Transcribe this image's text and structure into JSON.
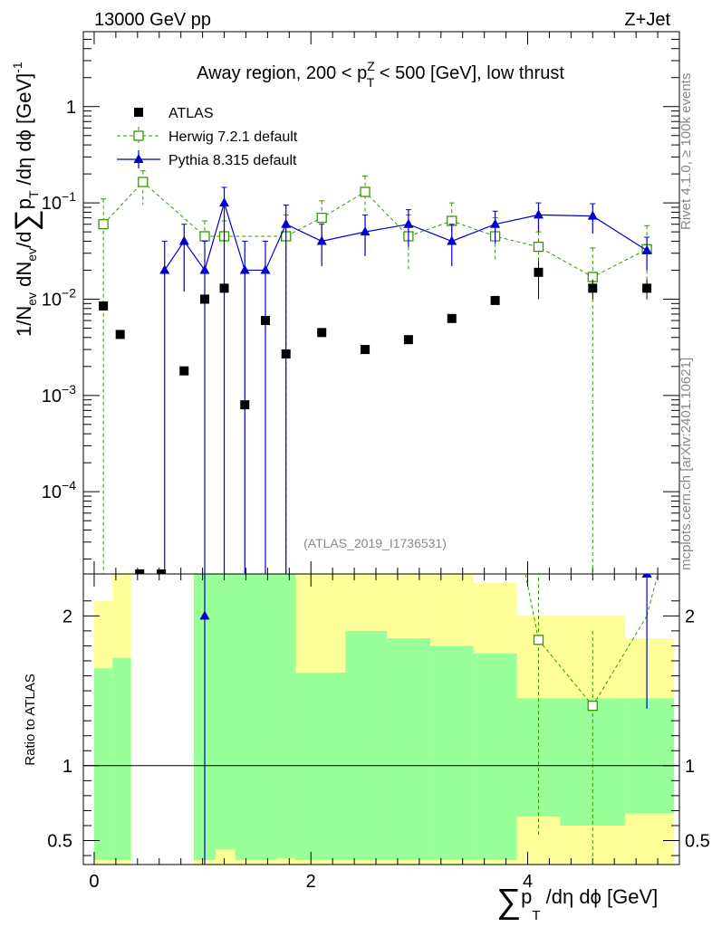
{
  "header": {
    "left": "13000 GeV pp",
    "right": "Z+Jet"
  },
  "side_text": {
    "rivet": "Rivet 4.1.0, ≥ 100k events",
    "mcplots": "mcplots.cern.ch [arXiv:2401.10621]"
  },
  "chart_data": {
    "type": "scatter",
    "title": "Away region, 200 < p_T^Z < 500 [GeV], low thrust",
    "title_parts": {
      "pre": "Away region, 200 < p",
      "sup": "Z",
      "sub": "T",
      "post": " < 500 [GeV], low thrust"
    },
    "analysis_id": "(ATLAS_2019_I1736531)",
    "xlabel": "∑ p_T /dη dϕ [GeV]",
    "xlabel_parts": {
      "sum": "∑",
      "p": "p",
      "sub": "T",
      "rest": " /dη dϕ [GeV]"
    },
    "ylabel": "1/N_ev dN_ev/d∑ p_T /dη dϕ [GeV]^-1",
    "ylabel_parts": {
      "a": "1/N",
      "ev1": "ev",
      "b": " dN",
      "ev2": "ev",
      "c": "/d",
      "sum": "∑",
      "p": "p",
      "sub": "T",
      "d": " /dη dϕ  [GeV]",
      "sup": "-1"
    },
    "ratio_ylabel": "Ratio to ATLAS",
    "xlim": [
      -0.1,
      5.4
    ],
    "ylim": [
      1.4e-05,
      6
    ],
    "ratio_ylim": [
      0.34,
      2.28
    ],
    "x_ticks": [
      {
        "v": 0,
        "label": "0"
      },
      {
        "v": 2,
        "label": "2"
      },
      {
        "v": 4,
        "label": "4"
      }
    ],
    "y_ticks": [
      {
        "v": 1,
        "base": "1",
        "exp": ""
      },
      {
        "v": 0.1,
        "base": "10",
        "exp": "−1"
      },
      {
        "v": 0.01,
        "base": "10",
        "exp": "−2"
      },
      {
        "v": 0.001,
        "base": "10",
        "exp": "−3"
      },
      {
        "v": 0.0001,
        "base": "10",
        "exp": "−4"
      }
    ],
    "ratio_ticks": [
      {
        "v": 0.5,
        "label": "0.5"
      },
      {
        "v": 1,
        "label": "1"
      },
      {
        "v": 2,
        "label": "2"
      }
    ],
    "legend": [
      {
        "name": "ATLAS",
        "marker": "square",
        "color": "#000000"
      },
      {
        "name": "Herwig 7.2.1 default",
        "marker": "open-square",
        "color": "#339900",
        "dashed": true
      },
      {
        "name": "Pythia 8.315 default",
        "marker": "triangle",
        "color": "#0000cc"
      }
    ],
    "atlas": {
      "x": [
        0.085,
        0.24,
        0.42,
        0.62,
        0.83,
        1.02,
        1.2,
        1.39,
        1.58,
        1.77,
        2.1,
        2.5,
        2.9,
        3.3,
        3.7,
        4.1,
        4.6,
        5.1
      ],
      "y": [
        0.0085,
        0.0043,
        1.4e-05,
        1.4e-05,
        0.0018,
        0.01,
        0.013,
        0.0008,
        0.006,
        0.0027,
        0.0045,
        0.003,
        0.0038,
        0.0063,
        0.0097,
        0.019,
        0.013,
        0.013
      ],
      "err_lo": [
        0,
        0,
        0,
        0,
        0,
        0,
        0,
        0,
        0,
        0,
        0,
        0,
        0,
        0,
        0,
        0.009,
        0.003,
        0.003
      ],
      "err_hi": [
        0,
        0,
        0,
        0,
        0,
        0,
        0,
        0,
        0,
        0,
        0,
        0,
        0,
        0,
        0,
        0.006,
        0.003,
        0.003
      ]
    },
    "herwig": {
      "x": [
        0.085,
        0.45,
        1.02,
        1.2,
        1.77,
        2.1,
        2.5,
        2.9,
        3.3,
        3.7,
        4.1,
        4.6,
        5.1
      ],
      "y": [
        0.06,
        0.165,
        0.045,
        0.045,
        0.045,
        0.07,
        0.13,
        0.045,
        0.065,
        0.045,
        0.035,
        0.017,
        0.033
      ],
      "err_lo": [
        0.05999,
        0.07,
        0.04499,
        0.04499,
        0.04499,
        0.03,
        0.05,
        0.025,
        0.03,
        0.02,
        0.02,
        0.01699,
        0.02
      ],
      "err_hi": [
        0.05,
        0.05,
        0.02,
        0.02,
        0.03,
        0.035,
        0.06,
        0.03,
        0.035,
        0.025,
        0.015,
        0.017,
        0.025
      ],
      "ratio_x": [
        4.1,
        4.6
      ],
      "ratio_y": [
        1.84,
        1.4
      ],
      "ratio_err_lo": [
        1.3,
        1.3
      ],
      "ratio_err_hi": [
        0.5,
        0.5
      ],
      "ratio_lines": [
        [
          3.98,
          2.28,
          4.1,
          1.84
        ],
        [
          5.1,
          2.0,
          5.2,
          2.28
        ]
      ]
    },
    "pythia": {
      "x": [
        0.65,
        0.83,
        1.02,
        1.2,
        1.39,
        1.58,
        1.77,
        2.1,
        2.5,
        2.9,
        3.3,
        3.7,
        4.1,
        4.6,
        5.1
      ],
      "y": [
        0.02,
        0.04,
        0.02,
        0.1,
        0.02,
        0.02,
        0.06,
        0.04,
        0.05,
        0.06,
        0.04,
        0.06,
        0.075,
        0.073,
        0.032
      ],
      "err_lo": [
        0.01999,
        0.028,
        0.01999,
        0.09999,
        0.01999,
        0.01999,
        0.05999,
        0.018,
        0.022,
        0.025,
        0.018,
        0.022,
        0.025,
        0.025,
        0.012
      ],
      "err_hi": [
        0.02,
        0.02,
        0.02,
        0.045,
        0.02,
        0.02,
        0.035,
        0.02,
        0.025,
        0.025,
        0.02,
        0.022,
        0.025,
        0.025,
        0.012
      ],
      "ratio_x": [
        1.02,
        5.1
      ],
      "ratio_y": [
        2.0,
        2.28
      ],
      "ratio_err_lo": [
        1.7,
        0.9
      ],
      "ratio_err_hi": [
        0.3,
        0.0
      ]
    },
    "ratio_bands": {
      "edges": [
        0.0,
        0.17,
        0.34,
        0.72,
        0.92,
        1.12,
        1.3,
        1.48,
        1.68,
        1.86,
        2.32,
        2.7,
        3.1,
        3.5,
        3.9,
        4.3,
        4.9,
        5.35
      ],
      "green": [
        [
          0.37,
          1.65
        ],
        [
          0.37,
          1.72
        ],
        [
          null,
          null
        ],
        [
          null,
          null
        ],
        [
          0.37,
          2.28
        ],
        [
          0.37,
          2.28
        ],
        [
          0.37,
          2.28
        ],
        [
          0.37,
          2.28
        ],
        [
          0.37,
          2.28
        ],
        [
          0.37,
          1.62
        ],
        [
          0.37,
          1.9
        ],
        [
          0.37,
          1.85
        ],
        [
          0.37,
          1.8
        ],
        [
          0.37,
          1.75
        ],
        [
          0.37,
          1.45
        ],
        [
          0.37,
          1.45
        ],
        [
          0.37,
          1.45
        ]
      ],
      "yellow": [
        [
          0.34,
          2.1
        ],
        [
          0.34,
          2.28
        ],
        [
          null,
          null
        ],
        [
          null,
          null
        ],
        [
          0.34,
          2.28
        ],
        [
          0.34,
          2.28
        ],
        [
          0.34,
          2.28
        ],
        [
          0.34,
          2.28
        ],
        [
          0.34,
          2.28
        ],
        [
          0.34,
          2.28
        ],
        [
          0.34,
          2.28
        ],
        [
          0.34,
          2.28
        ],
        [
          0.34,
          2.28
        ],
        [
          0.34,
          2.22
        ],
        [
          0.34,
          2.0
        ],
        [
          0.34,
          2.0
        ],
        [
          0.34,
          1.85
        ]
      ],
      "green_low": [
        null,
        null,
        null,
        null,
        null,
        0.44,
        null,
        null,
        0.38,
        null,
        null,
        null,
        null,
        null,
        0.66,
        0.6,
        0.68
      ],
      "yellow_low_top": [
        null,
        null,
        null,
        null,
        null,
        0.44,
        null,
        null,
        0.38,
        null,
        null,
        0.4,
        null,
        null,
        0.66,
        0.6,
        0.68
      ]
    }
  }
}
